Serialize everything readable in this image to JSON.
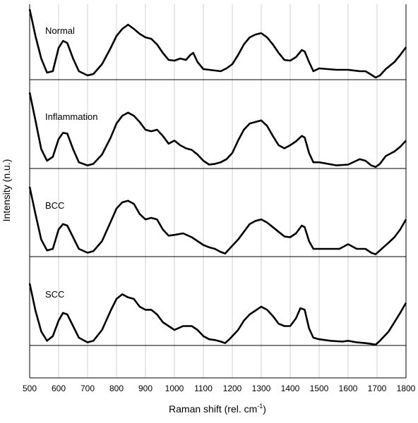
{
  "chart_data": {
    "type": "line",
    "title": "",
    "xlabel": "Raman shift (rel. cm",
    "xlabel_superscript": "-1",
    "xlabel_suffix": ")",
    "ylabel": "Intensity (n.u.)",
    "xlim": [
      500,
      1800
    ],
    "xticks": [
      "500",
      "600",
      "700",
      "800",
      "900",
      "1000",
      "1100",
      "1200",
      "1300",
      "1400",
      "1500",
      "1600",
      "1700",
      "1800"
    ],
    "grid": "vertical",
    "layout": "stacked-offset",
    "line_color": "#000000",
    "grid_color": "#d0d0d0",
    "series": [
      {
        "name": "Normal",
        "points": [
          [
            500,
            1.0
          ],
          [
            520,
            0.62
          ],
          [
            540,
            0.3
          ],
          [
            560,
            0.1
          ],
          [
            580,
            0.12
          ],
          [
            600,
            0.45
          ],
          [
            615,
            0.55
          ],
          [
            630,
            0.52
          ],
          [
            650,
            0.3
          ],
          [
            670,
            0.12
          ],
          [
            700,
            0.06
          ],
          [
            720,
            0.08
          ],
          [
            750,
            0.22
          ],
          [
            780,
            0.45
          ],
          [
            800,
            0.62
          ],
          [
            820,
            0.72
          ],
          [
            840,
            0.78
          ],
          [
            860,
            0.72
          ],
          [
            880,
            0.65
          ],
          [
            900,
            0.6
          ],
          [
            920,
            0.58
          ],
          [
            940,
            0.5
          ],
          [
            960,
            0.38
          ],
          [
            980,
            0.28
          ],
          [
            1000,
            0.27
          ],
          [
            1020,
            0.3
          ],
          [
            1040,
            0.28
          ],
          [
            1055,
            0.35
          ],
          [
            1065,
            0.38
          ],
          [
            1080,
            0.25
          ],
          [
            1100,
            0.15
          ],
          [
            1120,
            0.14
          ],
          [
            1140,
            0.13
          ],
          [
            1160,
            0.12
          ],
          [
            1180,
            0.16
          ],
          [
            1200,
            0.22
          ],
          [
            1220,
            0.35
          ],
          [
            1240,
            0.5
          ],
          [
            1260,
            0.6
          ],
          [
            1280,
            0.64
          ],
          [
            1300,
            0.66
          ],
          [
            1320,
            0.6
          ],
          [
            1340,
            0.5
          ],
          [
            1360,
            0.38
          ],
          [
            1380,
            0.28
          ],
          [
            1400,
            0.27
          ],
          [
            1420,
            0.32
          ],
          [
            1440,
            0.42
          ],
          [
            1450,
            0.4
          ],
          [
            1465,
            0.25
          ],
          [
            1480,
            0.12
          ],
          [
            1500,
            0.16
          ],
          [
            1530,
            0.15
          ],
          [
            1560,
            0.14
          ],
          [
            1600,
            0.14
          ],
          [
            1640,
            0.12
          ],
          [
            1660,
            0.12
          ],
          [
            1680,
            0.07
          ],
          [
            1695,
            0.03
          ],
          [
            1710,
            0.06
          ],
          [
            1730,
            0.15
          ],
          [
            1760,
            0.25
          ],
          [
            1780,
            0.35
          ],
          [
            1800,
            0.46
          ]
        ]
      },
      {
        "name": "Inflammation",
        "points": [
          [
            500,
            0.98
          ],
          [
            520,
            0.62
          ],
          [
            540,
            0.25
          ],
          [
            560,
            0.1
          ],
          [
            580,
            0.15
          ],
          [
            600,
            0.38
          ],
          [
            615,
            0.46
          ],
          [
            630,
            0.45
          ],
          [
            650,
            0.25
          ],
          [
            670,
            0.08
          ],
          [
            700,
            0.04
          ],
          [
            720,
            0.06
          ],
          [
            750,
            0.18
          ],
          [
            780,
            0.4
          ],
          [
            800,
            0.58
          ],
          [
            820,
            0.68
          ],
          [
            840,
            0.72
          ],
          [
            860,
            0.68
          ],
          [
            880,
            0.6
          ],
          [
            900,
            0.5
          ],
          [
            920,
            0.48
          ],
          [
            940,
            0.5
          ],
          [
            960,
            0.42
          ],
          [
            980,
            0.32
          ],
          [
            1000,
            0.36
          ],
          [
            1020,
            0.3
          ],
          [
            1040,
            0.26
          ],
          [
            1060,
            0.24
          ],
          [
            1080,
            0.18
          ],
          [
            1100,
            0.1
          ],
          [
            1120,
            0.05
          ],
          [
            1140,
            0.06
          ],
          [
            1160,
            0.08
          ],
          [
            1180,
            0.12
          ],
          [
            1200,
            0.2
          ],
          [
            1220,
            0.36
          ],
          [
            1240,
            0.5
          ],
          [
            1260,
            0.58
          ],
          [
            1280,
            0.6
          ],
          [
            1300,
            0.62
          ],
          [
            1320,
            0.55
          ],
          [
            1340,
            0.42
          ],
          [
            1360,
            0.3
          ],
          [
            1380,
            0.26
          ],
          [
            1400,
            0.3
          ],
          [
            1420,
            0.35
          ],
          [
            1440,
            0.42
          ],
          [
            1450,
            0.4
          ],
          [
            1465,
            0.2
          ],
          [
            1480,
            0.08
          ],
          [
            1500,
            0.08
          ],
          [
            1530,
            0.06
          ],
          [
            1560,
            0.04
          ],
          [
            1600,
            0.05
          ],
          [
            1640,
            0.12
          ],
          [
            1660,
            0.1
          ],
          [
            1680,
            0.04
          ],
          [
            1695,
            0.02
          ],
          [
            1710,
            0.06
          ],
          [
            1730,
            0.16
          ],
          [
            1760,
            0.22
          ],
          [
            1780,
            0.28
          ],
          [
            1800,
            0.36
          ]
        ]
      },
      {
        "name": "BCC",
        "points": [
          [
            500,
            0.9
          ],
          [
            520,
            0.55
          ],
          [
            540,
            0.22
          ],
          [
            560,
            0.08
          ],
          [
            580,
            0.1
          ],
          [
            600,
            0.35
          ],
          [
            615,
            0.42
          ],
          [
            630,
            0.4
          ],
          [
            650,
            0.25
          ],
          [
            670,
            0.1
          ],
          [
            700,
            0.05
          ],
          [
            720,
            0.07
          ],
          [
            750,
            0.2
          ],
          [
            780,
            0.45
          ],
          [
            800,
            0.62
          ],
          [
            820,
            0.7
          ],
          [
            840,
            0.72
          ],
          [
            860,
            0.68
          ],
          [
            880,
            0.55
          ],
          [
            900,
            0.48
          ],
          [
            920,
            0.5
          ],
          [
            940,
            0.48
          ],
          [
            960,
            0.35
          ],
          [
            980,
            0.27
          ],
          [
            1000,
            0.28
          ],
          [
            1030,
            0.3
          ],
          [
            1060,
            0.25
          ],
          [
            1080,
            0.2
          ],
          [
            1100,
            0.15
          ],
          [
            1120,
            0.12
          ],
          [
            1140,
            0.1
          ],
          [
            1160,
            0.06
          ],
          [
            1175,
            0.04
          ],
          [
            1190,
            0.1
          ],
          [
            1220,
            0.22
          ],
          [
            1240,
            0.32
          ],
          [
            1260,
            0.42
          ],
          [
            1280,
            0.46
          ],
          [
            1300,
            0.48
          ],
          [
            1320,
            0.44
          ],
          [
            1340,
            0.38
          ],
          [
            1360,
            0.32
          ],
          [
            1380,
            0.26
          ],
          [
            1400,
            0.25
          ],
          [
            1420,
            0.3
          ],
          [
            1440,
            0.4
          ],
          [
            1450,
            0.38
          ],
          [
            1465,
            0.2
          ],
          [
            1480,
            0.1
          ],
          [
            1500,
            0.1
          ],
          [
            1540,
            0.1
          ],
          [
            1570,
            0.1
          ],
          [
            1600,
            0.16
          ],
          [
            1630,
            0.1
          ],
          [
            1660,
            0.1
          ],
          [
            1680,
            0.05
          ],
          [
            1695,
            0.03
          ],
          [
            1710,
            0.08
          ],
          [
            1740,
            0.18
          ],
          [
            1760,
            0.25
          ],
          [
            1780,
            0.35
          ],
          [
            1800,
            0.48
          ]
        ]
      },
      {
        "name": "SCC",
        "points": [
          [
            500,
            0.8
          ],
          [
            520,
            0.45
          ],
          [
            540,
            0.18
          ],
          [
            560,
            0.06
          ],
          [
            580,
            0.12
          ],
          [
            600,
            0.32
          ],
          [
            615,
            0.42
          ],
          [
            630,
            0.4
          ],
          [
            650,
            0.25
          ],
          [
            670,
            0.1
          ],
          [
            700,
            0.04
          ],
          [
            720,
            0.06
          ],
          [
            750,
            0.2
          ],
          [
            780,
            0.45
          ],
          [
            800,
            0.6
          ],
          [
            820,
            0.66
          ],
          [
            840,
            0.62
          ],
          [
            860,
            0.6
          ],
          [
            880,
            0.5
          ],
          [
            900,
            0.46
          ],
          [
            920,
            0.46
          ],
          [
            940,
            0.4
          ],
          [
            960,
            0.3
          ],
          [
            980,
            0.25
          ],
          [
            1000,
            0.2
          ],
          [
            1030,
            0.25
          ],
          [
            1060,
            0.25
          ],
          [
            1080,
            0.2
          ],
          [
            1100,
            0.12
          ],
          [
            1120,
            0.08
          ],
          [
            1140,
            0.07
          ],
          [
            1160,
            0.05
          ],
          [
            1175,
            0.03
          ],
          [
            1190,
            0.08
          ],
          [
            1220,
            0.2
          ],
          [
            1240,
            0.32
          ],
          [
            1260,
            0.4
          ],
          [
            1280,
            0.45
          ],
          [
            1300,
            0.5
          ],
          [
            1320,
            0.46
          ],
          [
            1340,
            0.38
          ],
          [
            1360,
            0.28
          ],
          [
            1380,
            0.25
          ],
          [
            1400,
            0.25
          ],
          [
            1420,
            0.35
          ],
          [
            1435,
            0.48
          ],
          [
            1450,
            0.46
          ],
          [
            1465,
            0.22
          ],
          [
            1480,
            0.1
          ],
          [
            1500,
            0.08
          ],
          [
            1540,
            0.06
          ],
          [
            1580,
            0.05
          ],
          [
            1600,
            0.06
          ],
          [
            1630,
            0.04
          ],
          [
            1660,
            0.03
          ],
          [
            1680,
            0.02
          ],
          [
            1695,
            0.01
          ],
          [
            1710,
            0.06
          ],
          [
            1740,
            0.18
          ],
          [
            1760,
            0.3
          ],
          [
            1780,
            0.42
          ],
          [
            1800,
            0.55
          ]
        ]
      }
    ]
  }
}
